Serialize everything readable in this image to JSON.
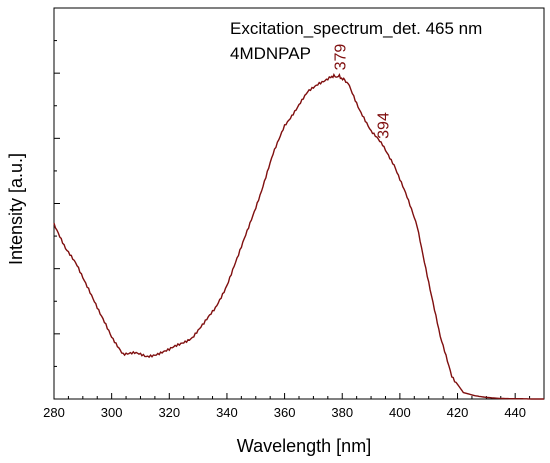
{
  "chart_data": {
    "type": "line",
    "title": "",
    "annotations": {
      "legend_line1": "Excitation_spectrum_det. 465 nm",
      "legend_line2": "4MDNPAP",
      "peak_labels": [
        {
          "text": "379",
          "x": 379,
          "y": 0.99
        },
        {
          "text": "394",
          "x": 394,
          "y": 0.78
        }
      ]
    },
    "xlabel": "Wavelength [nm]",
    "ylabel": "Intensity [a.u.]",
    "xlim": [
      280,
      450
    ],
    "ylim": [
      0,
      1.2
    ],
    "x_ticks": [
      280,
      300,
      320,
      340,
      360,
      380,
      400,
      420,
      440
    ],
    "y_tick_labels_shown": false,
    "grid": false,
    "legend_position": "top-right",
    "line_color": "#7f0f0f",
    "series": [
      {
        "name": "4MDNPAP",
        "x": [
          280,
          284,
          288,
          292,
          296,
          300,
          304,
          308,
          312,
          316,
          320,
          324,
          328,
          332,
          336,
          340,
          344,
          348,
          352,
          356,
          360,
          364,
          368,
          372,
          376,
          379,
          382,
          386,
          390,
          394,
          398,
          402,
          406,
          410,
          414,
          418,
          422,
          426,
          430,
          434,
          438,
          442,
          446,
          450
        ],
        "y": [
          0.54,
          0.46,
          0.41,
          0.34,
          0.26,
          0.19,
          0.14,
          0.14,
          0.13,
          0.14,
          0.15,
          0.17,
          0.19,
          0.23,
          0.28,
          0.35,
          0.44,
          0.54,
          0.64,
          0.75,
          0.84,
          0.89,
          0.94,
          0.97,
          0.99,
          0.99,
          0.97,
          0.89,
          0.82,
          0.78,
          0.72,
          0.63,
          0.53,
          0.36,
          0.19,
          0.07,
          0.02,
          0.01,
          0.005,
          0.002,
          0.001,
          0.001,
          0.0,
          0.0
        ]
      }
    ]
  }
}
